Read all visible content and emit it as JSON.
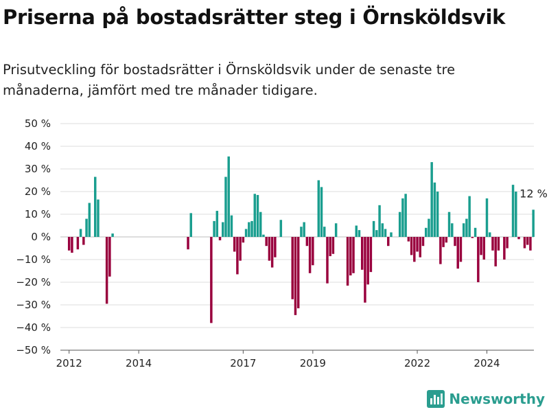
{
  "title": "Priserna på bostadsrätter steg i Örnsköldsvik",
  "subtitle": "Prisutveckling för bostadsrätter i Örnsköldsvik under de senaste tre månaderna, jämfört med tre månader tidigare.",
  "brand": {
    "name": "Newsworthy",
    "icon": "bar-chart-logo-icon"
  },
  "colors": {
    "positive": "#1a9e8f",
    "negative": "#99003d",
    "grid": "#dcdcdc",
    "axis": "#555555"
  },
  "chart_data": {
    "type": "bar",
    "ylim": [
      -50,
      50
    ],
    "y_ticks": [
      50,
      40,
      30,
      20,
      10,
      0,
      -10,
      -20,
      -30,
      -40,
      -50
    ],
    "y_tick_labels": [
      "50 %",
      "40 %",
      "30 %",
      "20 %",
      "10 %",
      "0 %",
      "−10 %",
      "−20 %",
      "−30 %",
      "−40 %",
      "−50 %"
    ],
    "x_ticks": [
      "2012",
      "2014",
      "2017",
      "2019",
      "2022",
      "2024"
    ],
    "x_range": [
      2011.75,
      2025.35
    ],
    "x_tick_positions": [
      2012.0,
      2014.0,
      2017.0,
      2019.0,
      2022.0,
      2024.0
    ],
    "x_month_start": [
      2012,
      1
    ],
    "annotation": {
      "label": "12 %",
      "value": 12
    },
    "values": [
      -6,
      -7,
      null,
      -5.5,
      3.5,
      -3.5,
      8,
      15,
      null,
      26.5,
      16.5,
      null,
      null,
      -29.5,
      -17.5,
      1.5,
      null,
      null,
      null,
      null,
      null,
      null,
      null,
      null,
      null,
      null,
      null,
      null,
      null,
      null,
      null,
      null,
      null,
      null,
      null,
      null,
      null,
      null,
      null,
      null,
      null,
      -5.5,
      10.5,
      null,
      null,
      null,
      null,
      null,
      null,
      -38,
      7,
      11.5,
      -1.5,
      6.5,
      26.5,
      35.5,
      9.5,
      -6.5,
      -16.5,
      -10.5,
      -2.5,
      3.5,
      6.5,
      7,
      19,
      18.5,
      11,
      1,
      -4,
      -10.5,
      -13.5,
      -9,
      null,
      7.5,
      null,
      null,
      null,
      -27.5,
      -34.5,
      -31.5,
      4.5,
      6.5,
      -4,
      -16,
      -12.5,
      null,
      25,
      22,
      4.5,
      -20.5,
      -8.5,
      -7.5,
      6,
      null,
      null,
      null,
      -21.5,
      -17,
      -16,
      5,
      3,
      -14.5,
      -29,
      -21,
      -15.5,
      7,
      3,
      14,
      6,
      3.5,
      -4,
      2,
      null,
      null,
      11,
      17,
      19,
      -2,
      -8,
      -11,
      -6.5,
      -9,
      -4,
      4,
      8,
      33,
      24,
      20,
      -12,
      -4.5,
      -2.5,
      11,
      6,
      -4,
      -14,
      -11,
      6,
      8,
      18,
      -0.5,
      4,
      -20,
      -8,
      -10,
      17,
      2,
      -6,
      -13,
      -6,
      null,
      -10,
      -5,
      null,
      23,
      20,
      -1,
      null,
      -5,
      -3.5,
      -6,
      12
    ]
  }
}
